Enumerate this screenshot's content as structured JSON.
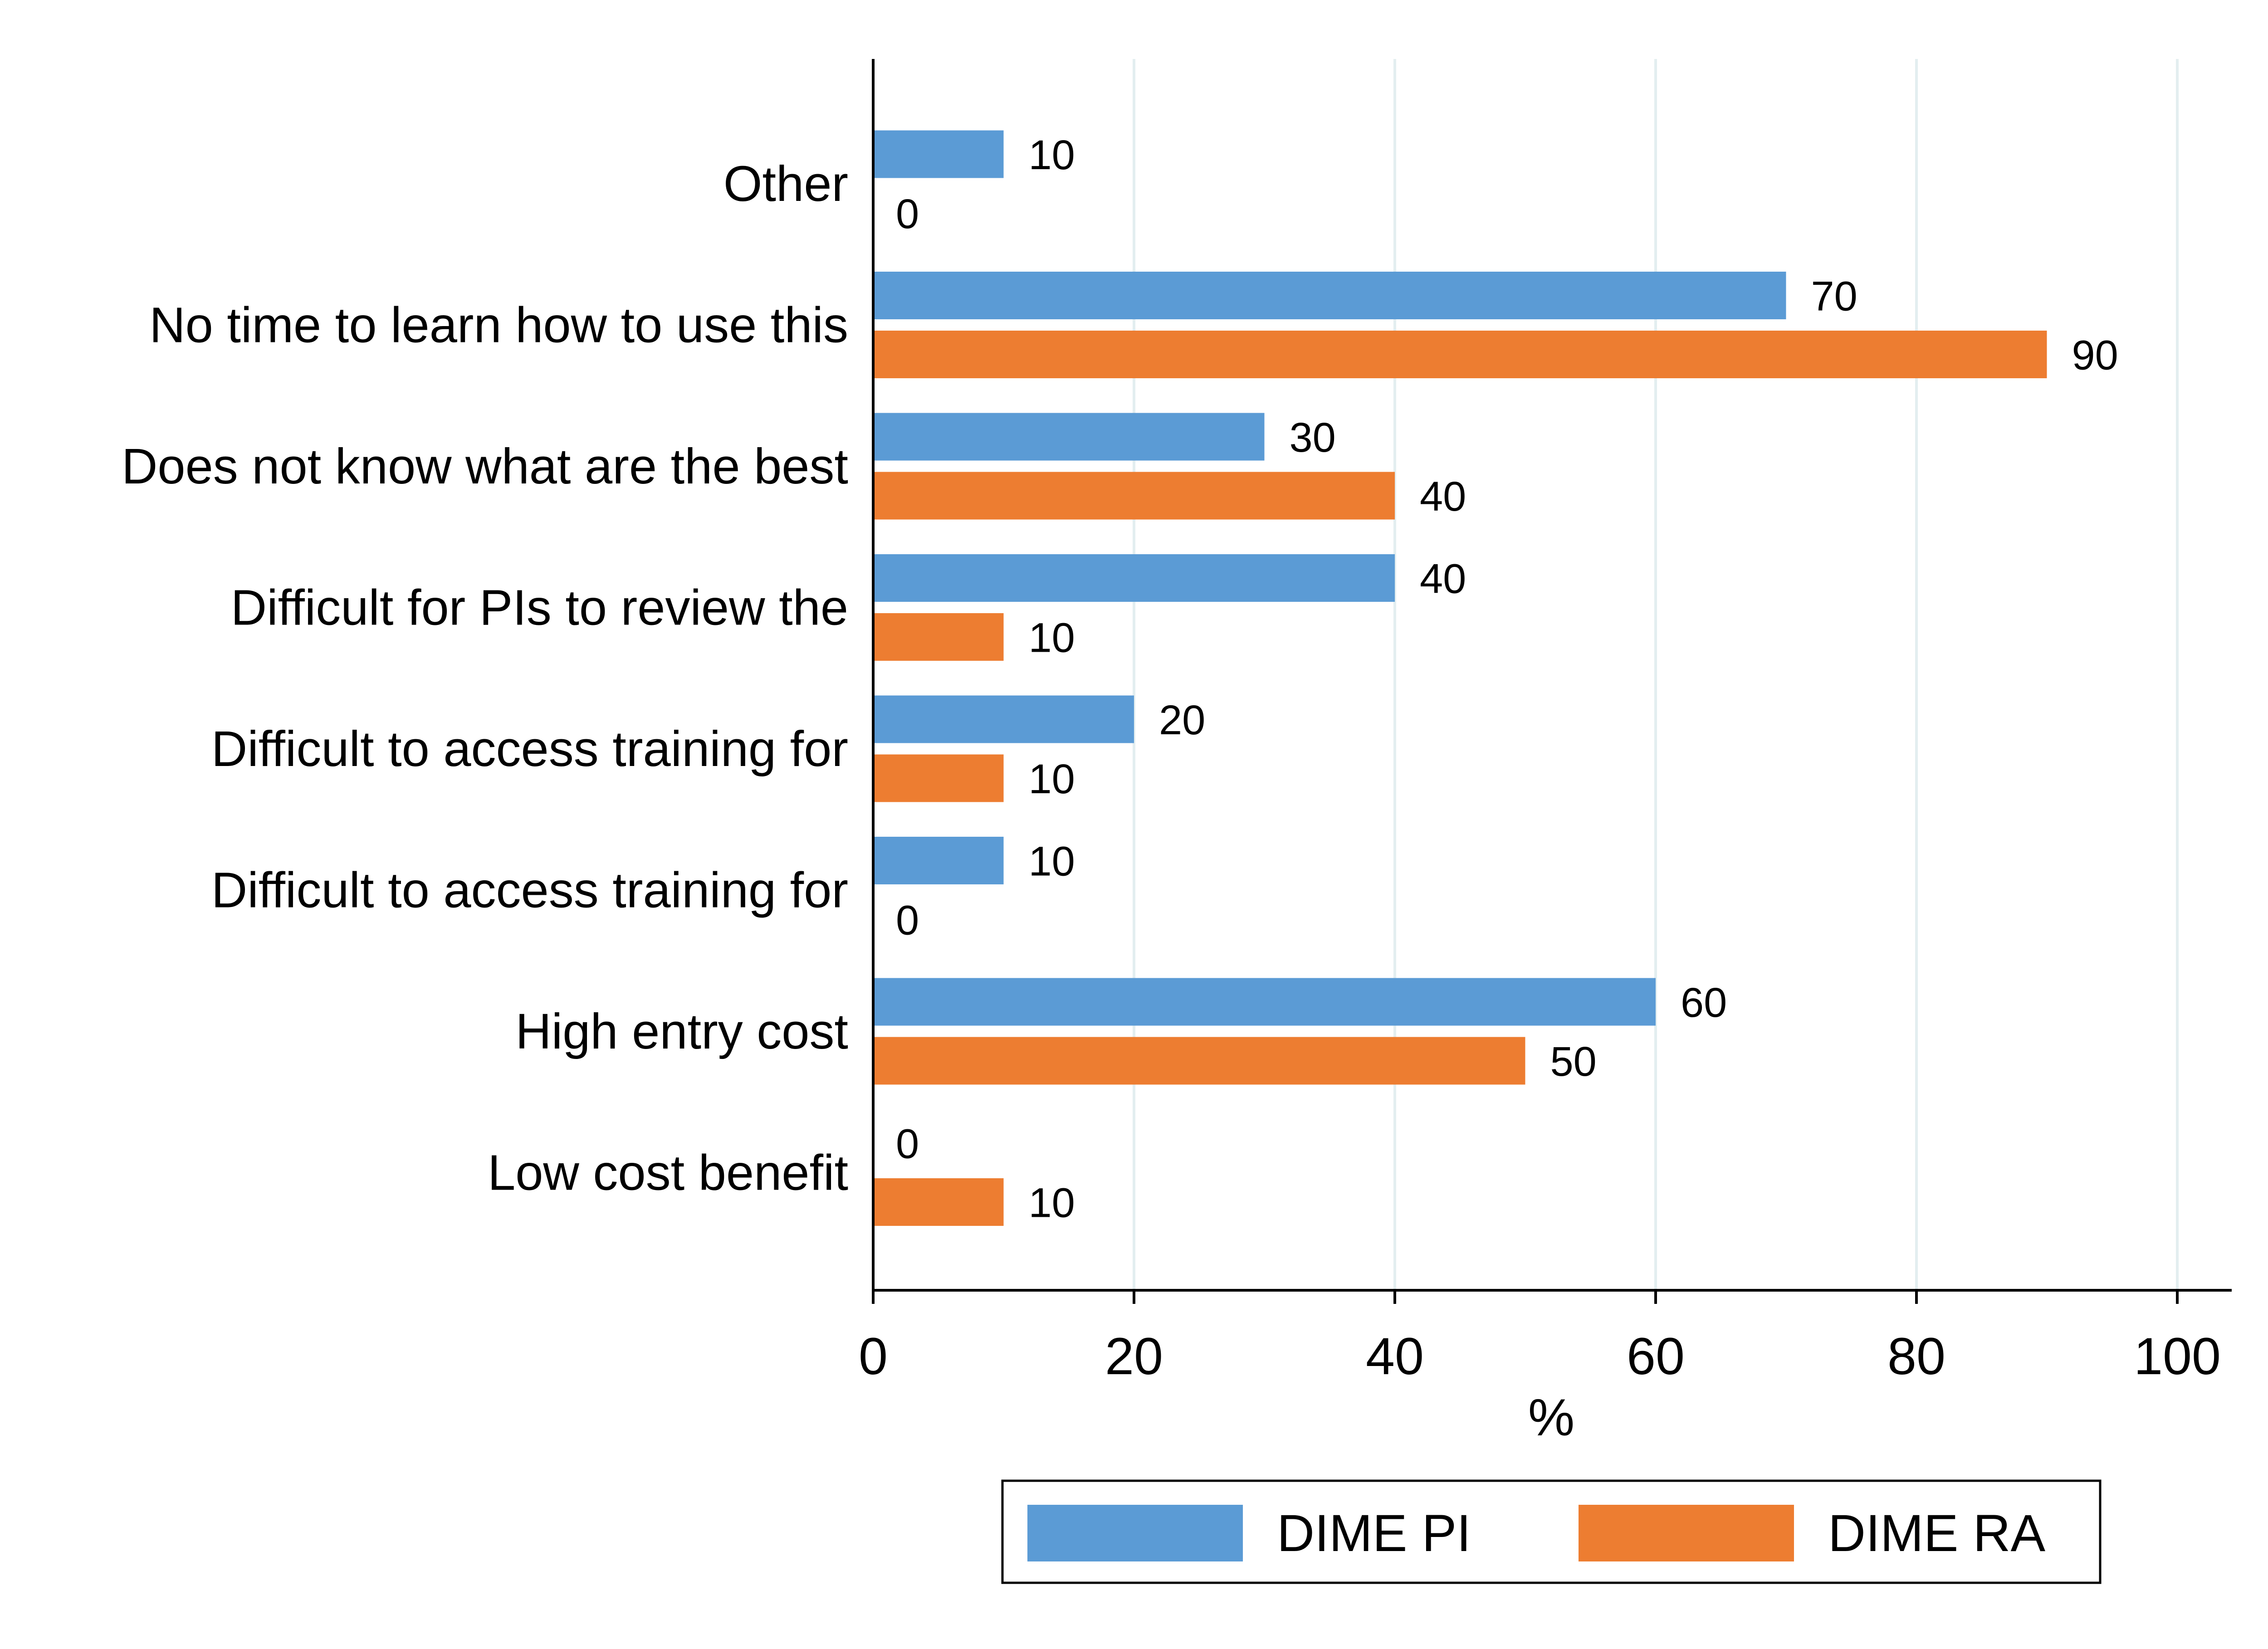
{
  "chart_data": {
    "type": "bar",
    "orientation": "horizontal",
    "categories": [
      "Other",
      "No time to learn how to use this",
      "Does not know what are the best",
      "Difficult for PIs to review the",
      "Difficult to access training for",
      "Difficult to access training for",
      "High entry cost",
      "Low cost benefit"
    ],
    "series": [
      {
        "name": "DIME PI",
        "color": "#5b9bd5",
        "values": [
          10,
          70,
          30,
          40,
          20,
          10,
          60,
          0
        ]
      },
      {
        "name": "DIME RA",
        "color": "#ed7d31",
        "values": [
          0,
          90,
          40,
          10,
          10,
          0,
          50,
          10
        ]
      }
    ],
    "xlabel": "%",
    "xlim": [
      0,
      100
    ],
    "xticks": [
      0,
      20,
      40,
      60,
      80,
      100
    ],
    "grid": "vertical",
    "data_labels": true,
    "legend_position": "bottom-right"
  }
}
